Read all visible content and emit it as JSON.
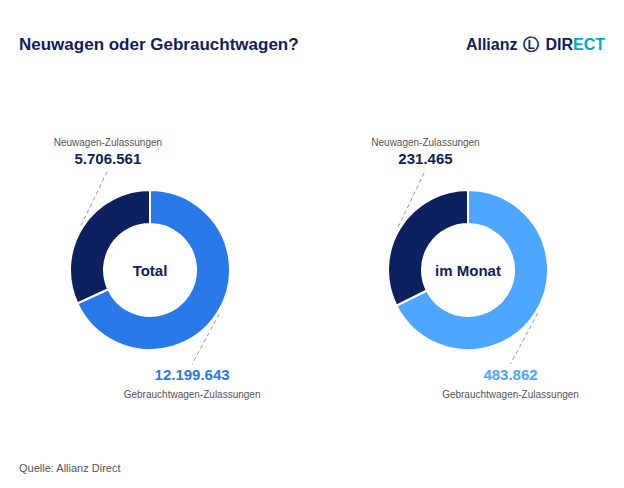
{
  "chart_data": [
    {
      "type": "pie",
      "title": "Neuwagen oder Gebrauchtwagen?",
      "categories": [
        "Gebrauchtwagen-Zulassungen",
        "Neuwagen-Zulassungen"
      ],
      "values": [
        12199643,
        5706561
      ],
      "value_labels": [
        "12.199.643",
        "5.706.561"
      ],
      "colors": [
        "#2979e8",
        "#0d2161"
      ],
      "data_labels": true,
      "annotations": [
        "Total",
        "Quelle: Allianz Direct",
        "Allianz",
        "Ⓛ",
        "DI",
        "R",
        "ECT"
      ]
    },
    {
      "type": "pie",
      "categories": [
        "Gebrauchtwagen-Zulassungen",
        "Neuwagen-Zulassungen"
      ],
      "values": [
        483862,
        231465
      ],
      "value_labels": [
        "483.862",
        "231.465"
      ],
      "colors": [
        "#4da6ff",
        "#0d2161"
      ],
      "data_labels": true,
      "annotations": [
        "im Monat"
      ]
    }
  ]
}
